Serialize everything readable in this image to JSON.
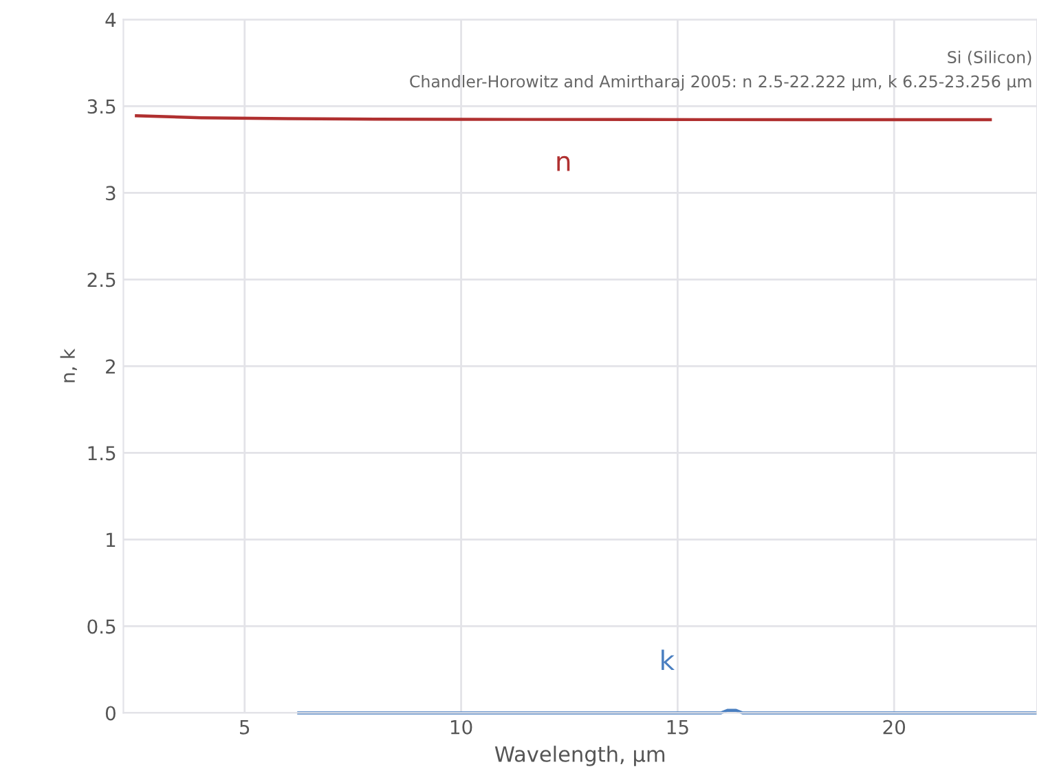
{
  "chart_data": {
    "type": "line",
    "xlabel": "Wavelength, µm",
    "ylabel": "n, k",
    "annotations": [
      "Si (Silicon)",
      "Chandler-Horowitz and Amirtharaj 2005: n 2.5-22.222 µm, k 6.25-23.256 µm"
    ],
    "series": [
      {
        "name": "n",
        "color": "#b03030",
        "x": [
          2.5,
          4,
          6,
          8,
          10,
          14,
          18,
          22.222
        ],
        "values": [
          3.445,
          3.433,
          3.428,
          3.425,
          3.424,
          3.423,
          3.422,
          3.422
        ]
      },
      {
        "name": "k",
        "color": "#4a7fc1",
        "x": [
          6.25,
          10,
          15,
          16.0,
          16.15,
          16.35,
          16.5,
          20,
          23.256
        ],
        "values": [
          0,
          0,
          0,
          0,
          0.015,
          0.015,
          0,
          0,
          0
        ]
      }
    ],
    "xlim": [
      2.2,
      23.3
    ],
    "xticks": [
      5,
      10,
      15,
      20
    ],
    "ylim": [
      0,
      4
    ],
    "yticks": [
      0,
      0.5,
      1,
      1.5,
      2,
      2.5,
      3,
      3.5,
      4
    ],
    "grid": true,
    "marker": "none",
    "line_style": "solid",
    "legend": false
  }
}
